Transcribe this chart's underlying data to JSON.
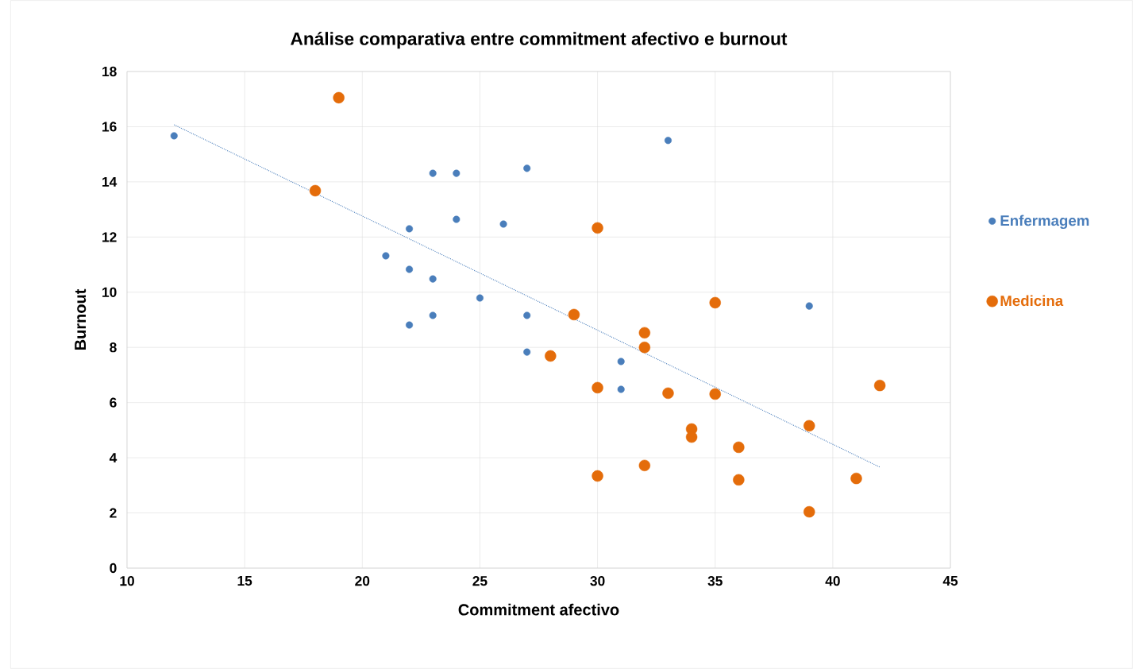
{
  "chart_data": {
    "type": "scatter",
    "title": "Análise comparativa entre commitment afectivo e burnout",
    "xlabel": "Commitment afectivo",
    "ylabel": "Burnout",
    "xlim": [
      10,
      45
    ],
    "ylim": [
      0,
      18
    ],
    "xticks": [
      10,
      15,
      20,
      25,
      30,
      35,
      40,
      45
    ],
    "yticks": [
      0,
      2,
      4,
      6,
      8,
      10,
      12,
      14,
      16,
      18
    ],
    "grid": true,
    "legend": "right",
    "marker": "circle",
    "series": [
      {
        "name": "Enfermagem",
        "color": "#4a7ebb",
        "x": [
          12,
          23,
          24,
          27,
          33,
          24,
          22,
          26,
          21,
          22,
          23,
          25,
          39,
          22,
          23,
          27,
          27,
          31,
          31
        ],
        "values": [
          15.67,
          14.31,
          14.31,
          14.49,
          15.5,
          12.64,
          12.3,
          12.47,
          11.32,
          10.83,
          10.48,
          9.79,
          9.5,
          8.81,
          9.16,
          9.16,
          7.83,
          7.49,
          6.48
        ]
      },
      {
        "name": "Medicina",
        "color": "#e46c0a",
        "x": [
          19,
          18,
          30,
          35,
          29,
          32,
          32,
          28,
          30,
          33,
          35,
          42,
          34,
          34,
          39,
          36,
          30,
          32,
          36,
          41,
          39
        ],
        "values": [
          17.05,
          13.68,
          12.33,
          9.62,
          9.19,
          8.53,
          8.0,
          7.69,
          6.54,
          6.34,
          6.31,
          6.62,
          5.04,
          4.75,
          5.16,
          4.38,
          3.34,
          3.72,
          3.2,
          3.25,
          2.04
        ]
      },
      {
        "type": "line",
        "line_style": "dotted",
        "marker": "none",
        "color": "#4a7ebb",
        "x": [
          12,
          42
        ],
        "values": [
          16.07,
          3.66
        ]
      }
    ]
  }
}
